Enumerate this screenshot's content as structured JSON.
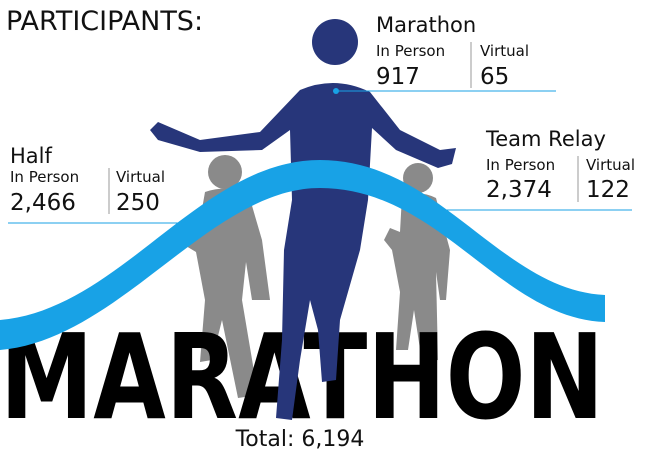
{
  "title": "PARTICIPANTS:",
  "background_text": "MARATHON",
  "events": [
    {
      "name": "Marathon",
      "columns": [
        {
          "label": "In Person",
          "value": "917"
        },
        {
          "label": "Virtual",
          "value": "65"
        }
      ]
    },
    {
      "name": "Half",
      "columns": [
        {
          "label": "In Person",
          "value": "2,466"
        },
        {
          "label": "Virtual",
          "value": "250"
        }
      ]
    },
    {
      "name": "Team Relay",
      "columns": [
        {
          "label": "In Person",
          "value": "2,374"
        },
        {
          "label": "Virtual",
          "value": "122"
        }
      ]
    }
  ],
  "total": "Total: 6,194"
}
